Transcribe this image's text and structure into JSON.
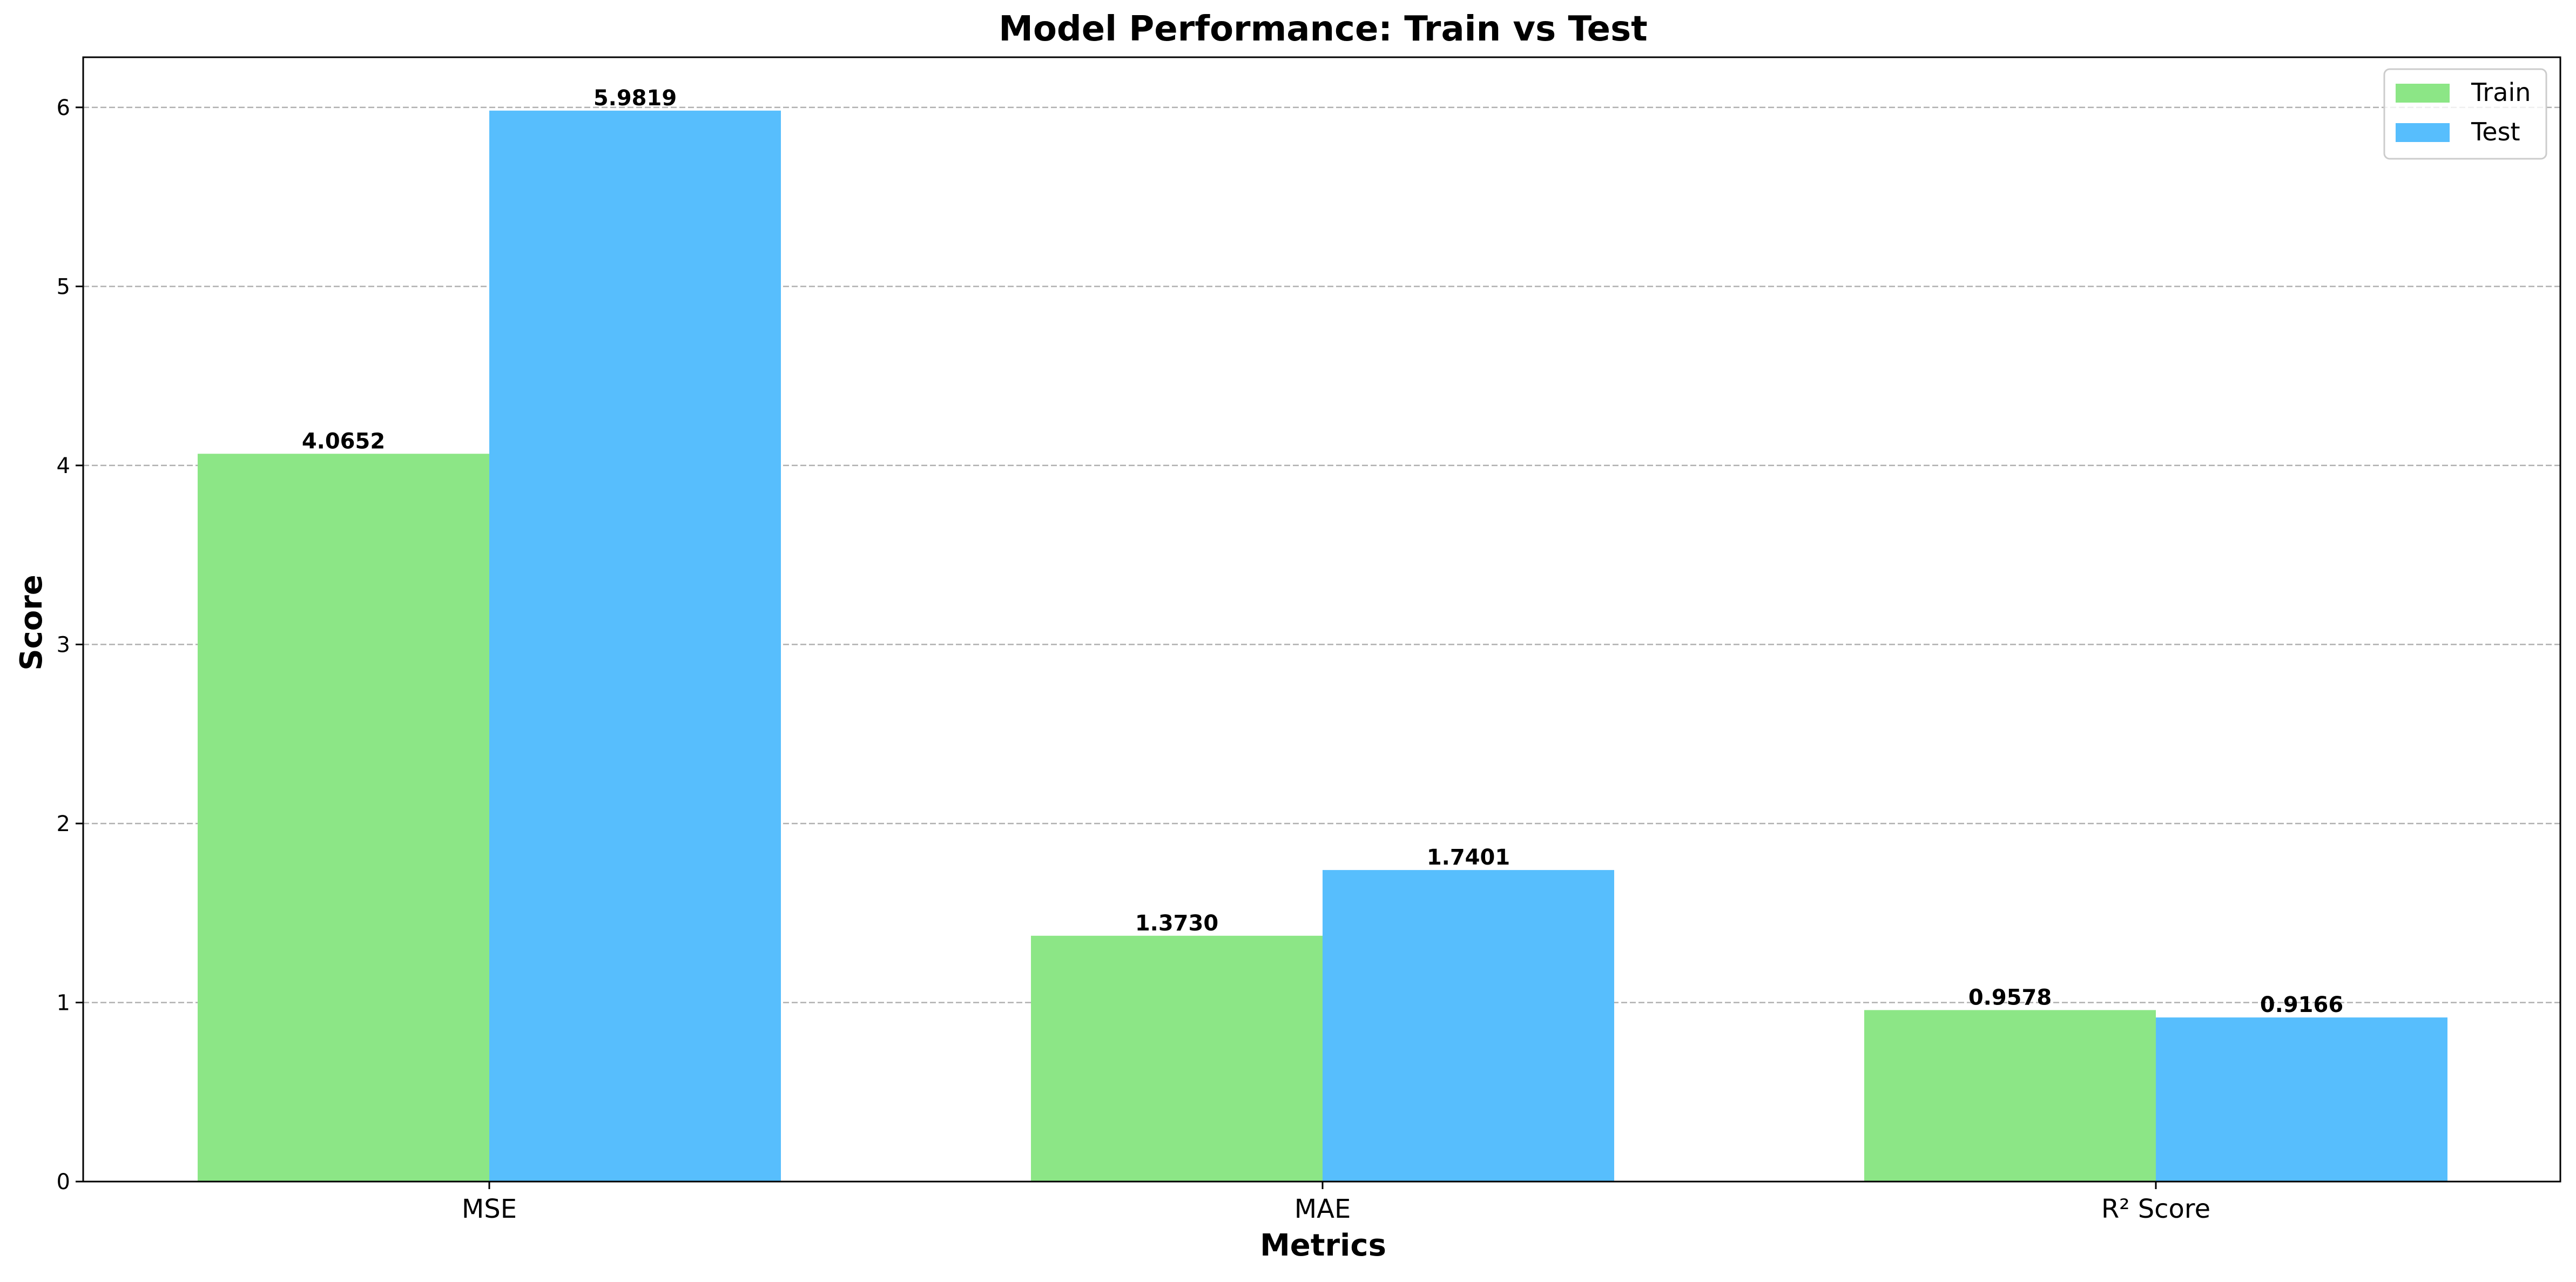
{
  "chart_data": {
    "type": "bar",
    "title": "Model Performance: Train vs Test",
    "xlabel": "Metrics",
    "ylabel": "Score",
    "categories": [
      "MSE",
      "MAE",
      "R² Score"
    ],
    "series": [
      {
        "name": "Train",
        "color": "#8ce686",
        "values": [
          4.0652,
          1.373,
          0.9578
        ],
        "labels": [
          "4.0652",
          "1.3730",
          "0.9578"
        ]
      },
      {
        "name": "Test",
        "color": "#57befd",
        "values": [
          5.9819,
          1.7401,
          0.9166
        ],
        "labels": [
          "5.9819",
          "1.7401",
          "0.9166"
        ]
      }
    ],
    "ylim": [
      0,
      6.28
    ],
    "yticks": [
      0,
      1,
      2,
      3,
      4,
      5,
      6
    ],
    "ytick_labels": [
      "0",
      "1",
      "2",
      "3",
      "4",
      "5",
      "6"
    ],
    "grid": "y-dashed",
    "legend_position": "top-right"
  }
}
